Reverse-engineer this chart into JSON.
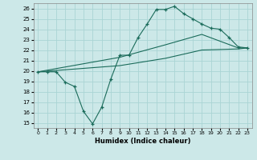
{
  "xlabel": "Humidex (Indice chaleur)",
  "bg_color": "#cce8e8",
  "line_color": "#1a6b5a",
  "grid_color": "#aad4d4",
  "xlim": [
    -0.5,
    23.5
  ],
  "ylim": [
    14.5,
    26.5
  ],
  "xticks": [
    0,
    1,
    2,
    3,
    4,
    5,
    6,
    7,
    8,
    9,
    10,
    11,
    12,
    13,
    14,
    15,
    16,
    17,
    18,
    19,
    20,
    21,
    22,
    23
  ],
  "yticks": [
    15,
    16,
    17,
    18,
    19,
    20,
    21,
    22,
    23,
    24,
    25,
    26
  ],
  "line1_x": [
    0,
    1,
    2,
    3,
    4,
    5,
    6,
    7,
    8,
    9,
    10,
    11,
    12,
    13,
    14,
    15,
    16,
    17,
    18,
    19,
    20,
    21,
    22,
    23
  ],
  "line1_y": [
    19.9,
    19.9,
    19.9,
    18.9,
    18.5,
    16.1,
    14.9,
    16.5,
    19.2,
    21.5,
    21.5,
    23.2,
    24.5,
    25.9,
    25.9,
    26.2,
    25.5,
    25.0,
    24.5,
    24.1,
    24.0,
    23.2,
    22.3,
    22.2
  ],
  "line2_x": [
    0,
    9,
    14,
    18,
    22,
    23
  ],
  "line2_y": [
    19.9,
    21.3,
    22.5,
    23.5,
    22.2,
    22.2
  ],
  "line3_x": [
    0,
    9,
    14,
    18,
    22,
    23
  ],
  "line3_y": [
    19.9,
    20.5,
    21.2,
    22.0,
    22.1,
    22.2
  ]
}
